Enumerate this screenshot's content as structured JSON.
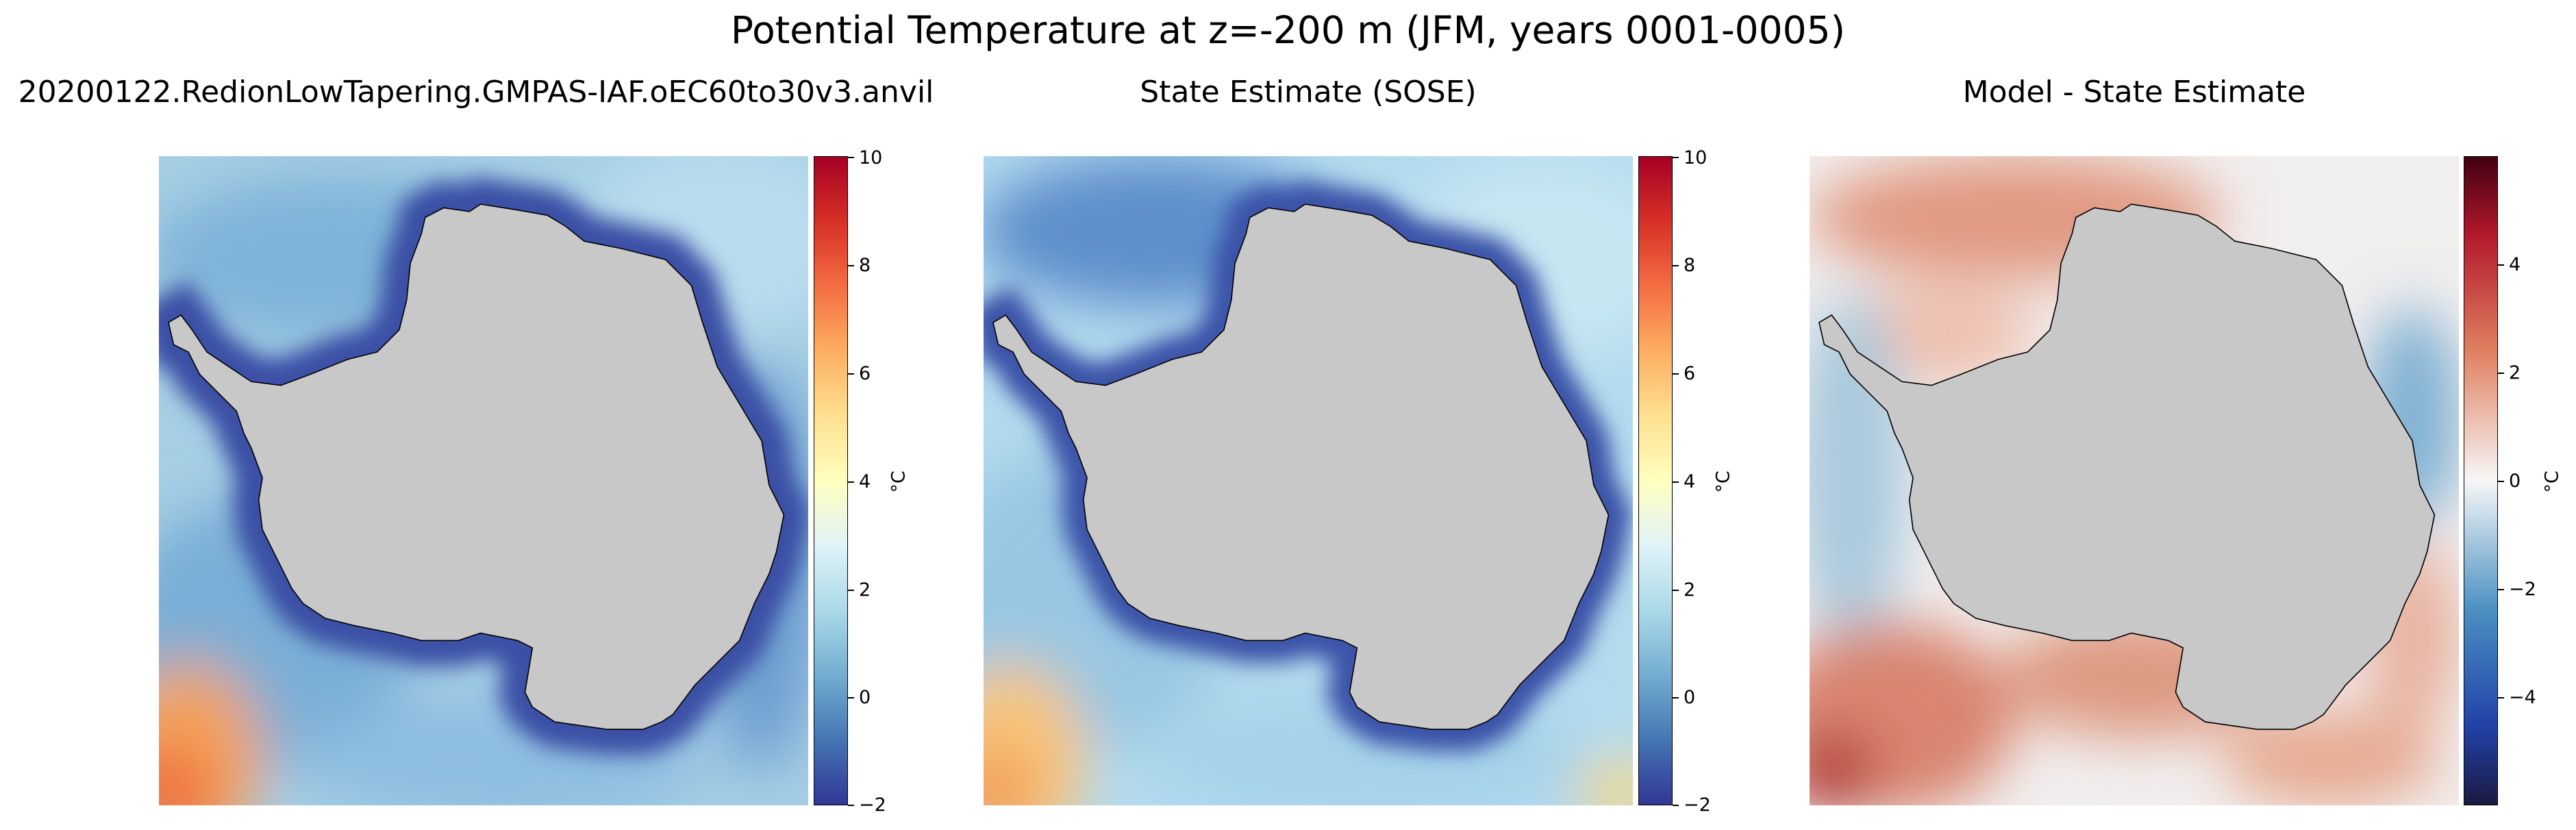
{
  "figure": {
    "title": "Potential Temperature at z=-200 m (JFM, years 0001-0005)"
  },
  "panels": [
    {
      "title": "20200122.RedionLowTapering.GMPAS-IAF.oEC60to30v3.anvil",
      "colorbar": {
        "ticks": [
          "10",
          "8",
          "6",
          "4",
          "2",
          "0",
          "−2"
        ],
        "range": [
          -2,
          10
        ],
        "unit": "°C",
        "colormap": "RdYlBu_r"
      }
    },
    {
      "title": "State Estimate (SOSE)",
      "colorbar": {
        "ticks": [
          "10",
          "8",
          "6",
          "4",
          "2",
          "0",
          "−2"
        ],
        "range": [
          -2,
          10
        ],
        "unit": "°C",
        "colormap": "RdYlBu_r"
      }
    },
    {
      "title": "Model - State Estimate",
      "colorbar": {
        "ticks": [
          "4",
          "2",
          "0",
          "−2",
          "−4"
        ],
        "range": [
          -5,
          5
        ],
        "unit": "°C",
        "colormap": "RdBu_r"
      }
    }
  ],
  "colors": {
    "land": "#c8c8c8",
    "coastline": "#000000"
  }
}
